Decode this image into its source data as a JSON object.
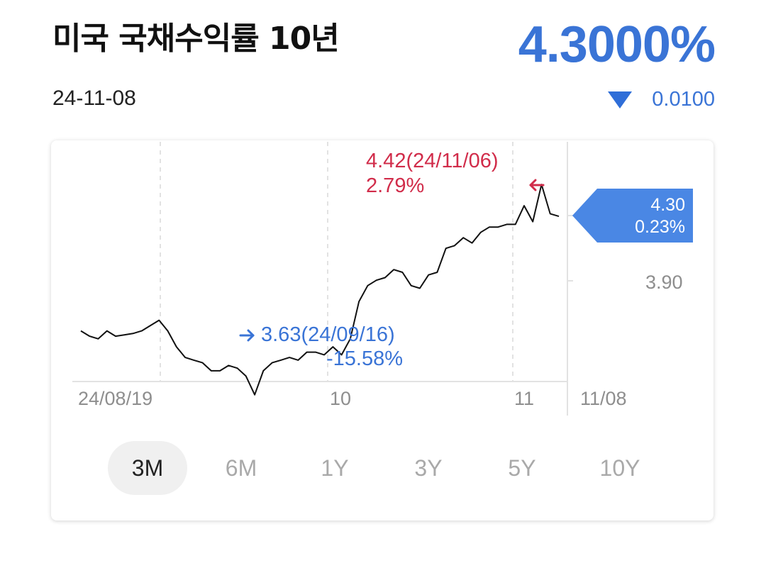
{
  "header": {
    "title": "미국 국채수익률 10년",
    "date": "24-11-08",
    "price": "4.3000%",
    "change": "0.0100",
    "direction_icon": "down-triangle-icon",
    "accent_color": "#3a74d6"
  },
  "chart_data": {
    "type": "line",
    "x_range": [
      "24/08/19",
      "24/11/08"
    ],
    "x_tick_labels": [
      "24/08/19",
      "10",
      "11",
      "11/08"
    ],
    "y_tick_labels": [
      "3.90"
    ],
    "ylim": [
      3.52,
      4.58
    ],
    "grid": true,
    "series": [
      {
        "color": "#111111",
        "values": [
          3.87,
          3.85,
          3.84,
          3.87,
          3.85,
          3.855,
          3.86,
          3.87,
          3.89,
          3.91,
          3.87,
          3.81,
          3.77,
          3.76,
          3.75,
          3.72,
          3.72,
          3.74,
          3.73,
          3.7,
          3.63,
          3.72,
          3.75,
          3.76,
          3.77,
          3.76,
          3.79,
          3.79,
          3.78,
          3.81,
          3.78,
          3.84,
          3.98,
          4.04,
          4.06,
          4.07,
          4.1,
          4.09,
          4.04,
          4.03,
          4.08,
          4.09,
          4.18,
          4.19,
          4.22,
          4.2,
          4.24,
          4.26,
          4.26,
          4.27,
          4.27,
          4.34,
          4.28,
          4.42,
          4.31,
          4.3
        ]
      }
    ],
    "annotations": {
      "high": {
        "value_text": "4.42(24/11/06)",
        "pct": "2.79%",
        "color": "#d12c4a"
      },
      "low": {
        "value_text": "3.63(24/09/16)",
        "pct": "-15.58%",
        "color": "#3a74d6"
      },
      "current": {
        "value": "4.30",
        "pct": "0.23%",
        "color": "#4a87e4"
      }
    }
  },
  "periods": [
    {
      "label": "3M",
      "active": true
    },
    {
      "label": "6M",
      "active": false
    },
    {
      "label": "1Y",
      "active": false
    },
    {
      "label": "3Y",
      "active": false
    },
    {
      "label": "5Y",
      "active": false
    },
    {
      "label": "10Y",
      "active": false
    }
  ]
}
